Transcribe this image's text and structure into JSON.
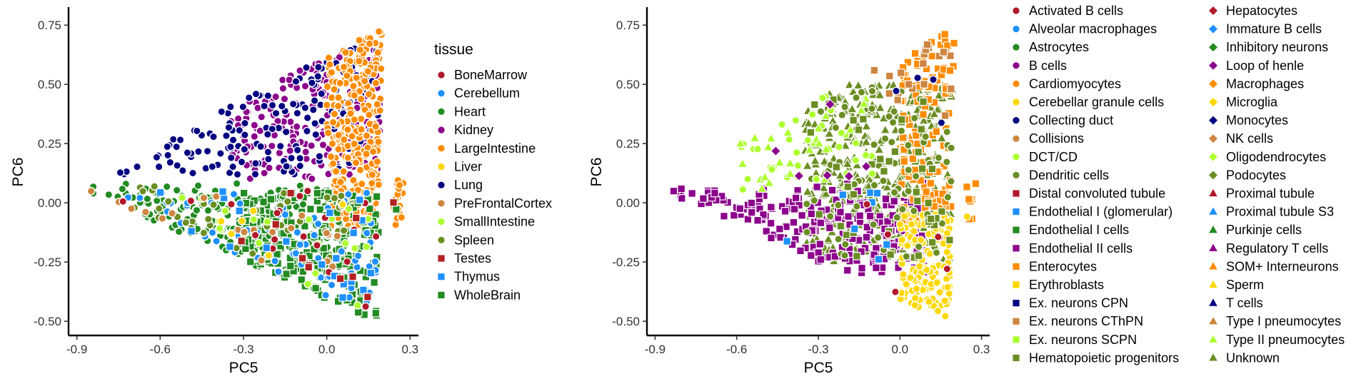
{
  "chart_data": [
    {
      "type": "scatter",
      "xlabel": "PC5",
      "ylabel": "PC6",
      "xlim": [
        -0.93,
        0.33
      ],
      "ylim": [
        -0.56,
        0.82
      ],
      "xticks": [
        -0.9,
        -0.6,
        -0.3,
        0.0,
        0.3
      ],
      "xtick_labels": [
        "-0.9",
        "-0.6",
        "-0.3",
        "0.0",
        "0.3"
      ],
      "yticks": [
        -0.5,
        -0.25,
        0.0,
        0.25,
        0.5,
        0.75
      ],
      "ytick_labels": [
        "-0.50",
        "-0.25",
        "0.00",
        "0.25",
        "0.50",
        "0.75"
      ],
      "grid": false,
      "legend": {
        "placement": "right",
        "title": "tissue",
        "items": [
          {
            "label": "BoneMarrow",
            "color": "#b2182b",
            "shape": "circle"
          },
          {
            "label": "Cerebellum",
            "color": "#1e90ff",
            "shape": "circle"
          },
          {
            "label": "Heart",
            "color": "#228b22",
            "shape": "circle"
          },
          {
            "label": "Kidney",
            "color": "#8b008b",
            "shape": "circle"
          },
          {
            "label": "LargeIntestine",
            "color": "#ff8c00",
            "shape": "circle"
          },
          {
            "label": "Liver",
            "color": "#ffd700",
            "shape": "circle"
          },
          {
            "label": "Lung",
            "color": "#000080",
            "shape": "circle"
          },
          {
            "label": "PreFrontalCortex",
            "color": "#cd853f",
            "shape": "circle"
          },
          {
            "label": "SmallIntestine",
            "color": "#adff2f",
            "shape": "circle"
          },
          {
            "label": "Spleen",
            "color": "#6b8e23",
            "shape": "circle"
          },
          {
            "label": "Testes",
            "color": "#b22222",
            "shape": "square"
          },
          {
            "label": "Thymus",
            "color": "#1e90ff",
            "shape": "square"
          },
          {
            "label": "WholeBrain",
            "color": "#228b22",
            "shape": "square"
          }
        ]
      },
      "regions": [
        {
          "label": "Heart",
          "region": "left_band",
          "count": 260
        },
        {
          "label": "Kidney",
          "region": "upper_mid",
          "count": 200
        },
        {
          "label": "Lung",
          "region": "upper_band",
          "count": 170
        },
        {
          "label": "LargeIntestine",
          "region": "right_top",
          "count": 300
        },
        {
          "label": "WholeBrain",
          "region": "lower_right",
          "count": 190
        },
        {
          "label": "Cerebellum",
          "region": "scatter_lower",
          "count": 70
        },
        {
          "label": "Spleen",
          "region": "left_band",
          "count": 40
        },
        {
          "label": "SmallIntestine",
          "region": "scatter_lower",
          "count": 25
        },
        {
          "label": "PreFrontalCortex",
          "region": "left_band",
          "count": 20
        },
        {
          "label": "BoneMarrow",
          "region": "scatter_lower",
          "count": 20
        },
        {
          "label": "Thymus",
          "region": "scatter_lower",
          "count": 20
        },
        {
          "label": "Testes",
          "region": "scatter_lower",
          "count": 12
        },
        {
          "label": "Liver",
          "region": "scatter_lower",
          "count": 6
        }
      ]
    },
    {
      "type": "scatter",
      "xlabel": "PC5",
      "ylabel": "PC6",
      "xlim": [
        -0.93,
        0.33
      ],
      "ylim": [
        -0.56,
        0.82
      ],
      "xticks": [
        -0.9,
        -0.6,
        -0.3,
        0.0,
        0.3
      ],
      "xtick_labels": [
        "-0.9",
        "-0.6",
        "-0.3",
        "0.0",
        "0.3"
      ],
      "yticks": [
        -0.5,
        -0.25,
        0.0,
        0.25,
        0.5,
        0.75
      ],
      "ytick_labels": [
        "-0.50",
        "-0.25",
        "0.00",
        "0.25",
        "0.50",
        "0.75"
      ],
      "grid": false,
      "legend": {
        "placement": "right",
        "title": "",
        "items": [
          {
            "label": "Activated B cells",
            "color": "#b2182b",
            "shape": "circle"
          },
          {
            "label": "Alveolar macrophages",
            "color": "#1e90ff",
            "shape": "circle"
          },
          {
            "label": "Astrocytes",
            "color": "#228b22",
            "shape": "circle"
          },
          {
            "label": "B cells",
            "color": "#8b008b",
            "shape": "circle"
          },
          {
            "label": "Cardiomyocytes",
            "color": "#ff8c00",
            "shape": "circle"
          },
          {
            "label": "Cerebellar granule cells",
            "color": "#ffd700",
            "shape": "circle"
          },
          {
            "label": "Collecting duct",
            "color": "#000080",
            "shape": "circle"
          },
          {
            "label": "Collisions",
            "color": "#cd853f",
            "shape": "circle"
          },
          {
            "label": "DCT/CD",
            "color": "#adff2f",
            "shape": "circle"
          },
          {
            "label": "Dendritic cells",
            "color": "#6b8e23",
            "shape": "circle"
          },
          {
            "label": "Distal convoluted tubule",
            "color": "#b2182b",
            "shape": "square"
          },
          {
            "label": "Endothelial I (glomerular)",
            "color": "#1e90ff",
            "shape": "square"
          },
          {
            "label": "Endothelial I cells",
            "color": "#228b22",
            "shape": "square"
          },
          {
            "label": "Endothelial II cells",
            "color": "#8b008b",
            "shape": "square"
          },
          {
            "label": "Enterocytes",
            "color": "#ff8c00",
            "shape": "square"
          },
          {
            "label": "Erythroblasts",
            "color": "#ffd700",
            "shape": "square"
          },
          {
            "label": "Ex. neurons CPN",
            "color": "#000080",
            "shape": "square"
          },
          {
            "label": "Ex. neurons CThPN",
            "color": "#cd853f",
            "shape": "square"
          },
          {
            "label": "Ex. neurons SCPN",
            "color": "#adff2f",
            "shape": "square"
          },
          {
            "label": "Hematopoietic progenitors",
            "color": "#6b8e23",
            "shape": "square"
          },
          {
            "label": "Hepatocytes",
            "color": "#b2182b",
            "shape": "diamond"
          },
          {
            "label": "Immature B cells",
            "color": "#1e90ff",
            "shape": "diamond"
          },
          {
            "label": "Inhibitory neurons",
            "color": "#228b22",
            "shape": "diamond"
          },
          {
            "label": "Loop of henle",
            "color": "#8b008b",
            "shape": "diamond"
          },
          {
            "label": "Macrophages",
            "color": "#ff8c00",
            "shape": "diamond"
          },
          {
            "label": "Microglia",
            "color": "#ffd700",
            "shape": "diamond"
          },
          {
            "label": "Monocytes",
            "color": "#000080",
            "shape": "diamond"
          },
          {
            "label": "NK cells",
            "color": "#cd853f",
            "shape": "diamond"
          },
          {
            "label": "Oligodendrocytes",
            "color": "#adff2f",
            "shape": "diamond"
          },
          {
            "label": "Podocytes",
            "color": "#6b8e23",
            "shape": "diamond"
          },
          {
            "label": "Proximal tubule",
            "color": "#b2182b",
            "shape": "triangle"
          },
          {
            "label": "Proximal tubule S3",
            "color": "#1e90ff",
            "shape": "triangle"
          },
          {
            "label": "Purkinje cells",
            "color": "#228b22",
            "shape": "triangle"
          },
          {
            "label": "Regulatory T cells",
            "color": "#8b008b",
            "shape": "triangle"
          },
          {
            "label": "SOM+ Interneurons",
            "color": "#ff8c00",
            "shape": "triangle"
          },
          {
            "label": "Sperm",
            "color": "#ffd700",
            "shape": "triangle"
          },
          {
            "label": "T cells",
            "color": "#000080",
            "shape": "triangle"
          },
          {
            "label": "Type I pneumocytes",
            "color": "#cd853f",
            "shape": "triangle"
          },
          {
            "label": "Type II pneumocytes",
            "color": "#adff2f",
            "shape": "triangle"
          },
          {
            "label": "Unknown",
            "color": "#6b8e23",
            "shape": "triangle"
          }
        ]
      },
      "regions": [
        {
          "label": "Unknown",
          "region": "center",
          "count": 420
        },
        {
          "label": "Endothelial II cells",
          "region": "left_band",
          "count": 230
        },
        {
          "label": "Enterocytes",
          "region": "right_top",
          "count": 150
        },
        {
          "label": "Cerebellar granule cells",
          "region": "bottom_right",
          "count": 140
        },
        {
          "label": "Dendritic cells",
          "region": "center",
          "count": 80
        },
        {
          "label": "DCT/CD",
          "region": "upper_left",
          "count": 40
        },
        {
          "label": "Type II pneumocytes",
          "region": "upper_left",
          "count": 25
        },
        {
          "label": "Ex. neurons CThPN",
          "region": "top",
          "count": 20
        },
        {
          "label": "Hematopoietic progenitors",
          "region": "center",
          "count": 40
        },
        {
          "label": "Endothelial I (glomerular)",
          "region": "scatter_lower",
          "count": 8
        },
        {
          "label": "Activated B cells",
          "region": "scatter_lower",
          "count": 6
        },
        {
          "label": "Loop of henle",
          "region": "upper_left",
          "count": 6
        },
        {
          "label": "Collecting duct",
          "region": "top",
          "count": 4
        }
      ]
    }
  ]
}
